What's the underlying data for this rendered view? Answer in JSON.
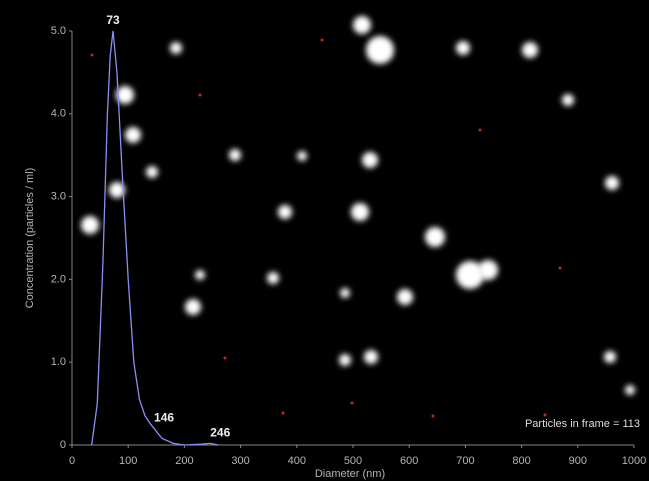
{
  "chart_data": {
    "type": "line",
    "x_label": "Diameter (nm)",
    "y_label": "Concentration (particles / ml)",
    "x": [
      35,
      45,
      55,
      63,
      68,
      73,
      80,
      90,
      100,
      110,
      120,
      130,
      140,
      146,
      160,
      180,
      200,
      230,
      246,
      260
    ],
    "series": [
      {
        "color": "#8a8ff0",
        "values": [
          0,
          0.5,
          2.2,
          4.0,
          4.7,
          5.0,
          4.5,
          3.2,
          2.0,
          1.0,
          0.55,
          0.35,
          0.25,
          0.2,
          0.08,
          0.02,
          0,
          0.01,
          0.02,
          0
        ]
      }
    ],
    "xlim": [
      0,
      1000
    ],
    "xticks": [
      0,
      100,
      200,
      300,
      400,
      500,
      600,
      700,
      800,
      900,
      1000
    ],
    "ylim": [
      0,
      5
    ],
    "yticks": [
      0,
      {
        "value": 1,
        "label": "1.0"
      },
      {
        "value": 2,
        "label": "2.0"
      },
      {
        "value": 3,
        "label": "3.0"
      },
      {
        "value": 4,
        "label": "4.0"
      },
      {
        "value": 5,
        "label": "5.0"
      }
    ],
    "annotations": [
      {
        "label": "73",
        "x": 73,
        "y": 5.0
      },
      {
        "label": "146",
        "x": 146,
        "y": 0.2
      },
      {
        "label": "246",
        "x": 246,
        "y": 0.02
      }
    ],
    "footnote": "Particles in frame = 113"
  }
}
